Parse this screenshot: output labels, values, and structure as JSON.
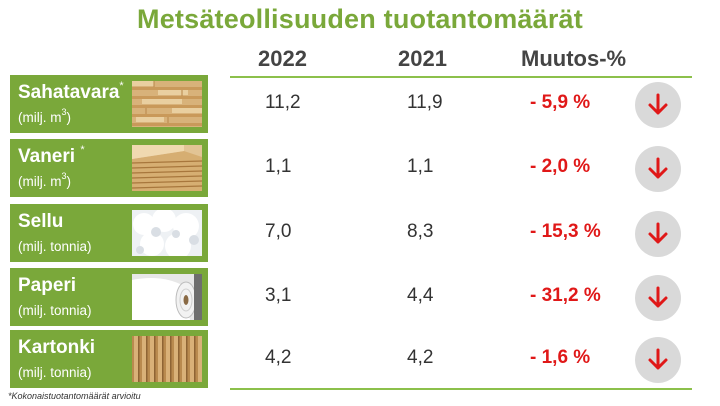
{
  "title": "Metsäteollisuuden tuotantomäärät",
  "columns": {
    "year_a": "2022",
    "year_b": "2021",
    "change": "Muutos-%"
  },
  "rows": [
    {
      "name": "Sahatavara",
      "asterisk": "*",
      "unit_prefix": "(milj. m",
      "unit_sup": "3",
      "unit_suffix": ")",
      "v2022": "11,2",
      "v2021": "11,9",
      "change": "- 5,9 %",
      "image": "sawn-timber",
      "trend": "down"
    },
    {
      "name": "Vaneri ",
      "asterisk": "*",
      "unit_prefix": "(milj. m",
      "unit_sup": "3",
      "unit_suffix": ")",
      "v2022": "1,1",
      "v2021": "1,1",
      "change": "- 2,0 %",
      "image": "plywood",
      "trend": "down"
    },
    {
      "name": "Sellu",
      "asterisk": "",
      "unit_prefix": "(milj. tonnia)",
      "unit_sup": "",
      "unit_suffix": "",
      "v2022": "7,0",
      "v2021": "8,3",
      "change": "- 15,3 %",
      "image": "pulp",
      "trend": "down"
    },
    {
      "name": "Paperi",
      "asterisk": "",
      "unit_prefix": "(milj. tonnia)",
      "unit_sup": "",
      "unit_suffix": "",
      "v2022": "3,1",
      "v2021": "4,4",
      "change": "- 31,2 %",
      "image": "paper-roll",
      "trend": "down"
    },
    {
      "name": "Kartonki",
      "asterisk": "",
      "unit_prefix": "(milj. tonnia)",
      "unit_sup": "",
      "unit_suffix": "",
      "v2022": "4,2",
      "v2021": "4,2",
      "change": "- 1,6 %",
      "image": "corrugated-board",
      "trend": "down"
    }
  ],
  "footnote": "*Kokonaistuotantomäärät arvioitu",
  "colors": {
    "accent_green": "#7aa83a",
    "line_green": "#8cc04b",
    "negative_red": "#e01818",
    "arrow_circle": "#d9d9d9"
  },
  "icons": {
    "trend_down": "arrow-down-icon"
  }
}
